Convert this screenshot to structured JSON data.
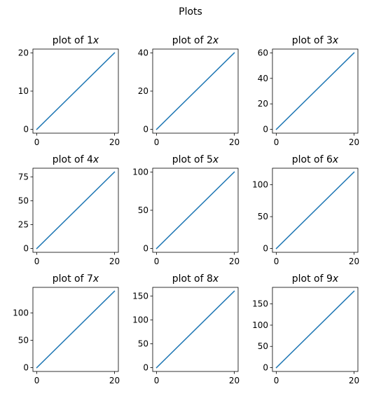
{
  "figure": {
    "suptitle": "Plots"
  },
  "colors": {
    "line": "#1f77b4",
    "axes": "#000000",
    "background": "#ffffff"
  },
  "chart_data": [
    {
      "type": "line",
      "title_prefix": "plot of ",
      "title_coef": "1",
      "title_var": "x",
      "x": [
        0,
        20
      ],
      "y": [
        0,
        20
      ],
      "xlim": [
        -1,
        21
      ],
      "ylim": [
        -1,
        21
      ],
      "xticks": [
        0,
        20
      ],
      "yticks": [
        0,
        10,
        20
      ],
      "grid": false
    },
    {
      "type": "line",
      "title_prefix": "plot of ",
      "title_coef": "2",
      "title_var": "x",
      "x": [
        0,
        20
      ],
      "y": [
        0,
        40
      ],
      "xlim": [
        -1,
        21
      ],
      "ylim": [
        -2,
        42
      ],
      "xticks": [
        0,
        20
      ],
      "yticks": [
        0,
        20,
        40
      ],
      "grid": false
    },
    {
      "type": "line",
      "title_prefix": "plot of ",
      "title_coef": "3",
      "title_var": "x",
      "x": [
        0,
        20
      ],
      "y": [
        0,
        60
      ],
      "xlim": [
        -1,
        21
      ],
      "ylim": [
        -3,
        63
      ],
      "xticks": [
        0,
        20
      ],
      "yticks": [
        0,
        20,
        40,
        60
      ],
      "grid": false
    },
    {
      "type": "line",
      "title_prefix": "plot of ",
      "title_coef": "4",
      "title_var": "x",
      "x": [
        0,
        20
      ],
      "y": [
        0,
        80
      ],
      "xlim": [
        -1,
        21
      ],
      "ylim": [
        -4,
        84
      ],
      "xticks": [
        0,
        20
      ],
      "yticks": [
        0,
        25,
        50,
        75
      ],
      "grid": false
    },
    {
      "type": "line",
      "title_prefix": "plot of ",
      "title_coef": "5",
      "title_var": "x",
      "x": [
        0,
        20
      ],
      "y": [
        0,
        100
      ],
      "xlim": [
        -1,
        21
      ],
      "ylim": [
        -5,
        105
      ],
      "xticks": [
        0,
        20
      ],
      "yticks": [
        0,
        50,
        100
      ],
      "grid": false
    },
    {
      "type": "line",
      "title_prefix": "plot of ",
      "title_coef": "6",
      "title_var": "x",
      "x": [
        0,
        20
      ],
      "y": [
        0,
        120
      ],
      "xlim": [
        -1,
        21
      ],
      "ylim": [
        -6,
        126
      ],
      "xticks": [
        0,
        20
      ],
      "yticks": [
        0,
        50,
        100
      ],
      "grid": false
    },
    {
      "type": "line",
      "title_prefix": "plot of ",
      "title_coef": "7",
      "title_var": "x",
      "x": [
        0,
        20
      ],
      "y": [
        0,
        140
      ],
      "xlim": [
        -1,
        21
      ],
      "ylim": [
        -7,
        147
      ],
      "xticks": [
        0,
        20
      ],
      "yticks": [
        0,
        50,
        100
      ],
      "grid": false
    },
    {
      "type": "line",
      "title_prefix": "plot of ",
      "title_coef": "8",
      "title_var": "x",
      "x": [
        0,
        20
      ],
      "y": [
        0,
        160
      ],
      "xlim": [
        -1,
        21
      ],
      "ylim": [
        -8,
        168
      ],
      "xticks": [
        0,
        20
      ],
      "yticks": [
        0,
        50,
        100,
        150
      ],
      "grid": false
    },
    {
      "type": "line",
      "title_prefix": "plot of ",
      "title_coef": "9",
      "title_var": "x",
      "x": [
        0,
        20
      ],
      "y": [
        0,
        180
      ],
      "xlim": [
        -1,
        21
      ],
      "ylim": [
        -9,
        189
      ],
      "xticks": [
        0,
        20
      ],
      "yticks": [
        0,
        50,
        100,
        150
      ],
      "grid": false
    }
  ]
}
